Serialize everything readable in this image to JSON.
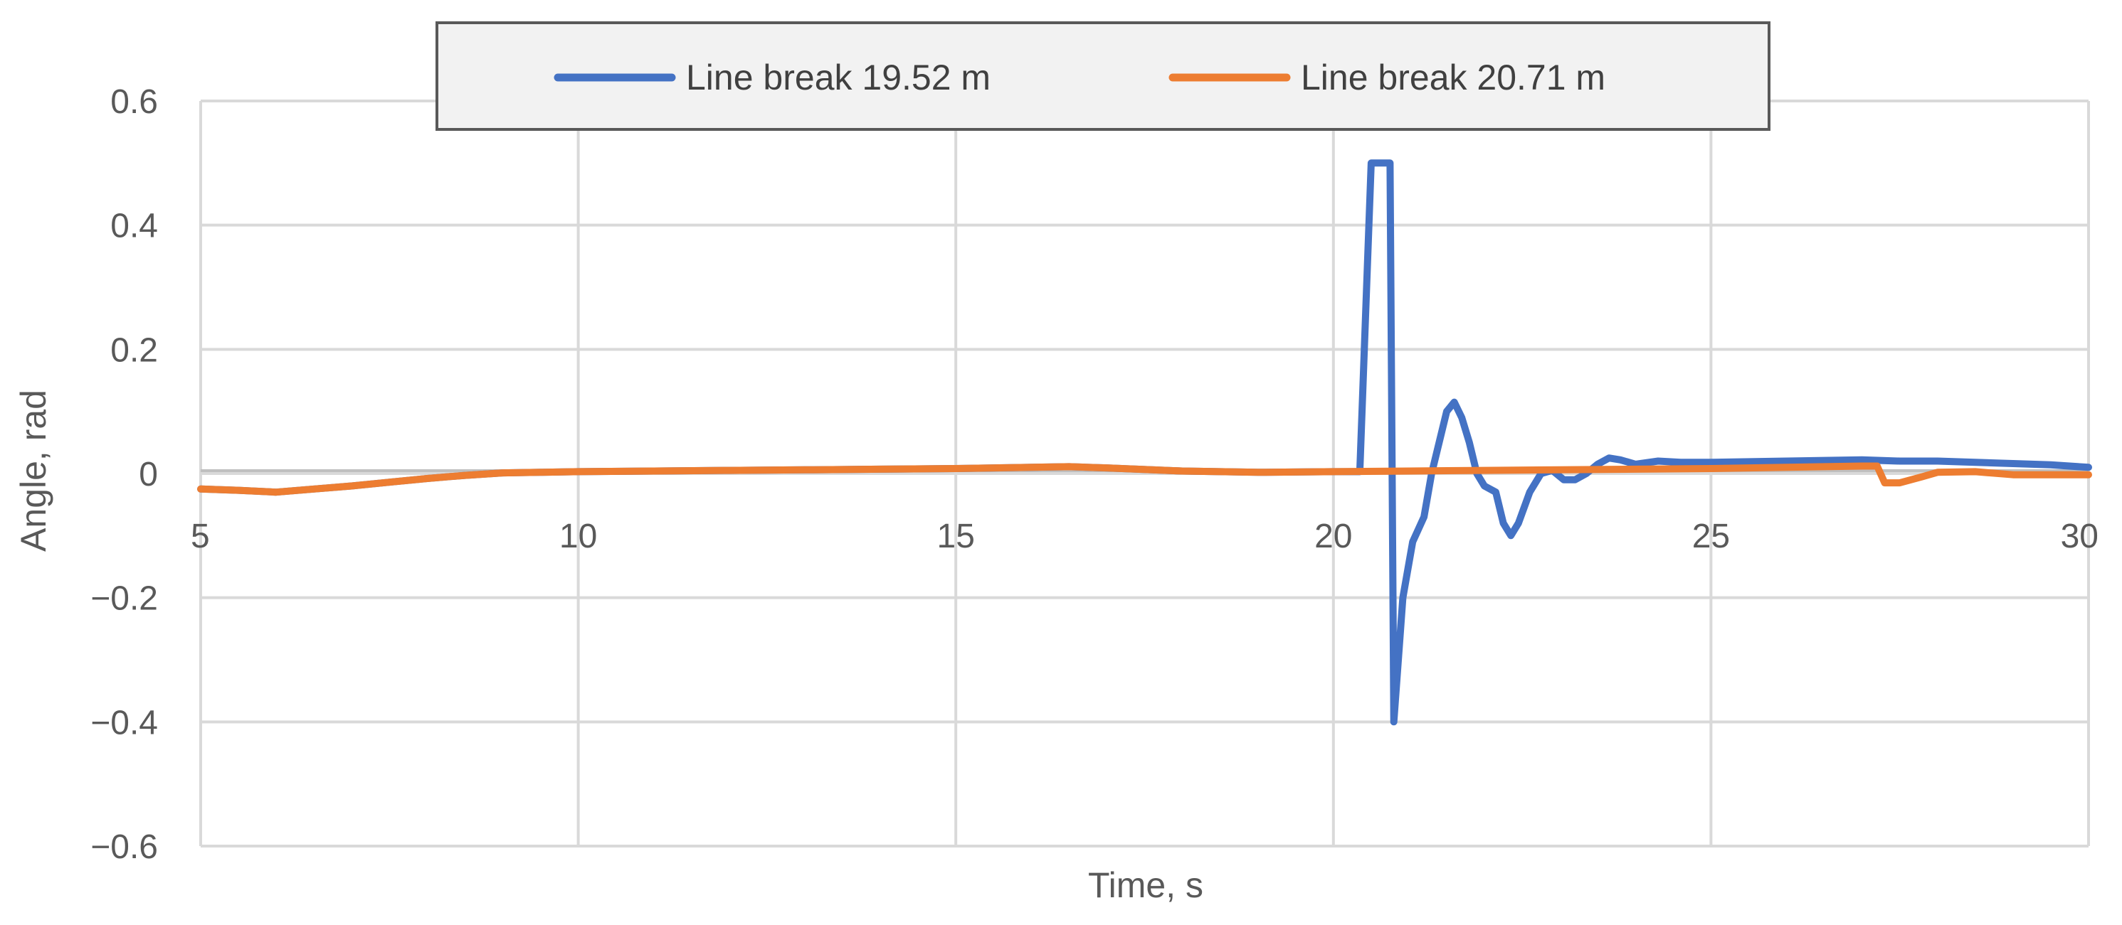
{
  "chart_data": {
    "type": "line",
    "xlabel": "Time, s",
    "ylabel": "Angle, rad",
    "xlim": [
      5,
      30
    ],
    "ylim": [
      -0.6,
      0.6
    ],
    "x_ticks": [
      5,
      10,
      15,
      20,
      25,
      30
    ],
    "y_ticks": [
      -0.6,
      -0.4,
      -0.2,
      0,
      0.2,
      0.4,
      0.6
    ],
    "y_tick_labels": [
      "−0.6",
      "−0.4",
      "−0.2",
      "0",
      "0.2",
      "0.4",
      "0.6"
    ],
    "grid": true,
    "legend_position": "top",
    "series": [
      {
        "name": "Line break 19.52 m",
        "color": "#4472C4",
        "points": [
          [
            5.0,
            -0.025
          ],
          [
            5.5,
            -0.027
          ],
          [
            6.0,
            -0.03
          ],
          [
            6.5,
            -0.025
          ],
          [
            7.0,
            -0.02
          ],
          [
            7.5,
            -0.014
          ],
          [
            8.0,
            -0.008
          ],
          [
            8.5,
            -0.003
          ],
          [
            9.0,
            0.001
          ],
          [
            9.5,
            0.002
          ],
          [
            10.0,
            0.003
          ],
          [
            11.0,
            0.004
          ],
          [
            12.0,
            0.005
          ],
          [
            13.0,
            0.006
          ],
          [
            14.0,
            0.007
          ],
          [
            15.0,
            0.008
          ],
          [
            16.0,
            0.01
          ],
          [
            16.5,
            0.011
          ],
          [
            17.0,
            0.009
          ],
          [
            18.0,
            0.004
          ],
          [
            19.0,
            0.002
          ],
          [
            20.0,
            0.003
          ],
          [
            20.35,
            0.003
          ],
          [
            20.5,
            0.5
          ],
          [
            20.65,
            0.5
          ],
          [
            20.75,
            0.5
          ],
          [
            20.8,
            -0.4
          ],
          [
            20.92,
            -0.2
          ],
          [
            21.05,
            -0.11
          ],
          [
            21.2,
            -0.07
          ],
          [
            21.3,
            0.0
          ],
          [
            21.4,
            0.05
          ],
          [
            21.5,
            0.1
          ],
          [
            21.6,
            0.115
          ],
          [
            21.7,
            0.09
          ],
          [
            21.8,
            0.05
          ],
          [
            21.9,
            0.0
          ],
          [
            22.0,
            -0.02
          ],
          [
            22.15,
            -0.03
          ],
          [
            22.25,
            -0.08
          ],
          [
            22.35,
            -0.1
          ],
          [
            22.45,
            -0.08
          ],
          [
            22.6,
            -0.03
          ],
          [
            22.75,
            0.0
          ],
          [
            22.9,
            0.005
          ],
          [
            23.05,
            -0.01
          ],
          [
            23.2,
            -0.01
          ],
          [
            23.35,
            0.0
          ],
          [
            23.5,
            0.015
          ],
          [
            23.65,
            0.025
          ],
          [
            23.8,
            0.022
          ],
          [
            24.0,
            0.015
          ],
          [
            24.3,
            0.02
          ],
          [
            24.6,
            0.018
          ],
          [
            25.0,
            0.018
          ],
          [
            26.0,
            0.02
          ],
          [
            27.0,
            0.022
          ],
          [
            27.5,
            0.02
          ],
          [
            28.0,
            0.02
          ],
          [
            28.5,
            0.018
          ],
          [
            29.0,
            0.016
          ],
          [
            29.5,
            0.014
          ],
          [
            30.0,
            0.01
          ]
        ]
      },
      {
        "name": "Line break 20.71 m",
        "color": "#ED7D31",
        "points": [
          [
            5.0,
            -0.025
          ],
          [
            5.5,
            -0.027
          ],
          [
            6.0,
            -0.03
          ],
          [
            6.5,
            -0.025
          ],
          [
            7.0,
            -0.02
          ],
          [
            7.5,
            -0.014
          ],
          [
            8.0,
            -0.008
          ],
          [
            8.5,
            -0.003
          ],
          [
            9.0,
            0.001
          ],
          [
            9.5,
            0.002
          ],
          [
            10.0,
            0.003
          ],
          [
            11.0,
            0.004
          ],
          [
            12.0,
            0.005
          ],
          [
            13.0,
            0.006
          ],
          [
            14.0,
            0.007
          ],
          [
            15.0,
            0.008
          ],
          [
            16.0,
            0.01
          ],
          [
            16.5,
            0.011
          ],
          [
            17.0,
            0.009
          ],
          [
            18.0,
            0.004
          ],
          [
            19.0,
            0.002
          ],
          [
            20.0,
            0.003
          ],
          [
            21.0,
            0.004
          ],
          [
            22.0,
            0.005
          ],
          [
            23.0,
            0.006
          ],
          [
            24.0,
            0.007
          ],
          [
            25.0,
            0.008
          ],
          [
            26.0,
            0.01
          ],
          [
            27.0,
            0.012
          ],
          [
            27.2,
            0.012
          ],
          [
            27.3,
            -0.015
          ],
          [
            27.5,
            -0.015
          ],
          [
            27.8,
            -0.005
          ],
          [
            28.0,
            0.002
          ],
          [
            28.5,
            0.003
          ],
          [
            29.0,
            -0.002
          ],
          [
            29.5,
            -0.002
          ],
          [
            30.0,
            -0.002
          ]
        ]
      }
    ]
  }
}
